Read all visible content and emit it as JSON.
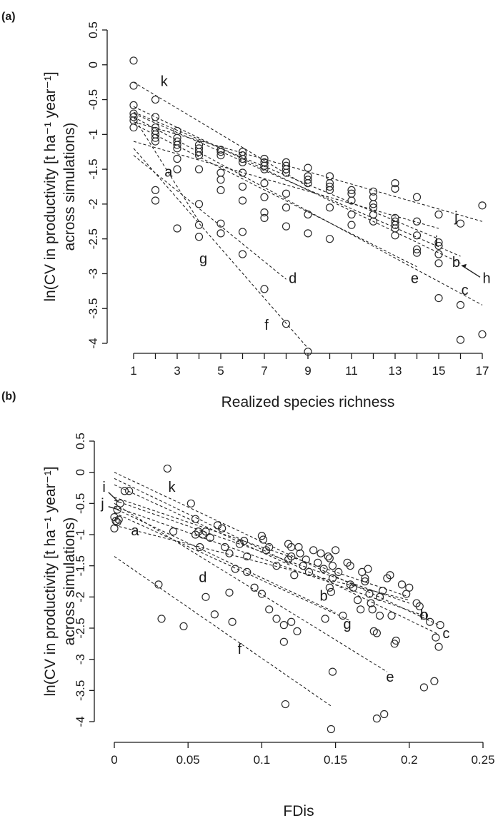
{
  "chart_data": [
    {
      "panel": "(a)",
      "type": "scatter",
      "xlabel": "Realized species richness",
      "ylabel_line1": "ln(CV in productivity [t ha⁻¹ year⁻¹]",
      "ylabel_line2": "across simulations)",
      "xlim": [
        1,
        17
      ],
      "ylim": [
        -4,
        0.5
      ],
      "xticks": [
        1,
        3,
        5,
        7,
        9,
        11,
        13,
        15,
        17
      ],
      "xminor": [
        2,
        4,
        6,
        8,
        10,
        12,
        14,
        16
      ],
      "yticks": [
        0.5,
        0,
        -0.5,
        -1,
        -1.5,
        -2,
        -2.5,
        -3,
        -3.5,
        -4
      ],
      "ytick_labels": [
        "0.5",
        "0",
        "-0.5",
        "-1",
        "-1.5",
        "-2",
        "-2.5",
        "-3",
        "-3.5",
        "-4"
      ],
      "xtick_labels": [
        "1",
        "3",
        "5",
        "7",
        "9",
        "11",
        "13",
        "15",
        "17"
      ],
      "points": [
        [
          1,
          0.06
        ],
        [
          1,
          -0.3
        ],
        [
          1,
          -0.58
        ],
        [
          1,
          -0.7
        ],
        [
          1,
          -0.75
        ],
        [
          1,
          -0.8
        ],
        [
          1,
          -0.9
        ],
        [
          2,
          -0.5
        ],
        [
          2,
          -0.75
        ],
        [
          2,
          -0.9
        ],
        [
          2,
          -0.95
        ],
        [
          2,
          -1.0
        ],
        [
          2,
          -1.05
        ],
        [
          2,
          -1.1
        ],
        [
          2,
          -1.8
        ],
        [
          2,
          -1.95
        ],
        [
          3,
          -0.95
        ],
        [
          3,
          -1.05
        ],
        [
          3,
          -1.1
        ],
        [
          3,
          -1.15
        ],
        [
          3,
          -1.2
        ],
        [
          3,
          -1.35
        ],
        [
          3,
          -1.5
        ],
        [
          3,
          -2.35
        ],
        [
          4,
          -1.15
        ],
        [
          4,
          -1.2
        ],
        [
          4,
          -1.25
        ],
        [
          4,
          -1.3
        ],
        [
          4,
          -1.5
        ],
        [
          4,
          -2.0
        ],
        [
          4,
          -2.3
        ],
        [
          4,
          -2.47
        ],
        [
          5,
          -1.22
        ],
        [
          5,
          -1.25
        ],
        [
          5,
          -1.3
        ],
        [
          5,
          -1.55
        ],
        [
          5,
          -1.65
        ],
        [
          5,
          -1.8
        ],
        [
          5,
          -2.28
        ],
        [
          5,
          -2.42
        ],
        [
          6,
          -1.25
        ],
        [
          6,
          -1.3
        ],
        [
          6,
          -1.35
        ],
        [
          6,
          -1.4
        ],
        [
          6,
          -1.55
        ],
        [
          6,
          -1.75
        ],
        [
          6,
          -1.95
        ],
        [
          6,
          -2.4
        ],
        [
          6,
          -2.72
        ],
        [
          7,
          -1.35
        ],
        [
          7,
          -1.4
        ],
        [
          7,
          -1.45
        ],
        [
          7,
          -1.5
        ],
        [
          7,
          -1.7
        ],
        [
          7,
          -1.9
        ],
        [
          7,
          -2.12
        ],
        [
          7,
          -2.2
        ],
        [
          7,
          -3.22
        ],
        [
          8,
          -1.4
        ],
        [
          8,
          -1.45
        ],
        [
          8,
          -1.5
        ],
        [
          8,
          -1.55
        ],
        [
          8,
          -1.85
        ],
        [
          8,
          -2.05
        ],
        [
          8,
          -2.32
        ],
        [
          8,
          -3.72
        ],
        [
          9,
          -1.48
        ],
        [
          9,
          -1.6
        ],
        [
          9,
          -1.65
        ],
        [
          9,
          -1.7
        ],
        [
          9,
          -2.15
        ],
        [
          9,
          -2.42
        ],
        [
          9,
          -4.12
        ],
        [
          10,
          -1.6
        ],
        [
          10,
          -1.7
        ],
        [
          10,
          -1.75
        ],
        [
          10,
          -1.8
        ],
        [
          10,
          -2.05
        ],
        [
          10,
          -2.5
        ],
        [
          11,
          -1.8
        ],
        [
          11,
          -1.85
        ],
        [
          11,
          -1.95
        ],
        [
          11,
          -2.15
        ],
        [
          11,
          -2.3
        ],
        [
          12,
          -1.82
        ],
        [
          12,
          -1.9
        ],
        [
          12,
          -2.0
        ],
        [
          12,
          -2.05
        ],
        [
          12,
          -2.15
        ],
        [
          12,
          -2.25
        ],
        [
          13,
          -1.7
        ],
        [
          13,
          -1.78
        ],
        [
          13,
          -2.2
        ],
        [
          13,
          -2.25
        ],
        [
          13,
          -2.3
        ],
        [
          13,
          -2.35
        ],
        [
          13,
          -2.45
        ],
        [
          14,
          -1.9
        ],
        [
          14,
          -2.25
        ],
        [
          14,
          -2.45
        ],
        [
          14,
          -2.65
        ],
        [
          14,
          -2.7
        ],
        [
          15,
          -2.15
        ],
        [
          15,
          -2.55
        ],
        [
          15,
          -2.6
        ],
        [
          15,
          -2.72
        ],
        [
          15,
          -2.85
        ],
        [
          15,
          -3.35
        ],
        [
          16,
          -2.28
        ],
        [
          16,
          -3.45
        ],
        [
          16,
          -3.95
        ],
        [
          17,
          -2.02
        ],
        [
          17,
          -3.87
        ]
      ],
      "fits": [
        {
          "label": "a",
          "x": [
            1,
            15
          ],
          "y": [
            -1.1,
            -2.35
          ]
        },
        {
          "label": "b",
          "x": [
            1,
            16
          ],
          "y": [
            -0.7,
            -2.75
          ]
        },
        {
          "label": "c",
          "x": [
            1,
            17
          ],
          "y": [
            -0.75,
            -3.45
          ]
        },
        {
          "label": "d",
          "x": [
            1,
            8
          ],
          "y": [
            -1.3,
            -3.08
          ]
        },
        {
          "label": "e",
          "x": [
            1,
            14
          ],
          "y": [
            -0.85,
            -2.9
          ]
        },
        {
          "label": "f",
          "x": [
            1,
            9
          ],
          "y": [
            -1.2,
            -4.07
          ]
        },
        {
          "label": "g",
          "x": [
            1,
            4
          ],
          "y": [
            -0.75,
            -2.25
          ]
        },
        {
          "label": "h",
          "x": [
            1,
            16
          ],
          "y": [
            -0.6,
            -2.85
          ]
        },
        {
          "label": "i",
          "x": [
            1,
            15
          ],
          "y": [
            -0.68,
            -2.5
          ]
        },
        {
          "label": "j",
          "x": [
            1,
            17
          ],
          "y": [
            -0.82,
            -2.25
          ]
        },
        {
          "label": "k",
          "x": [
            1,
            9
          ],
          "y": [
            -0.25,
            -1.75
          ]
        }
      ],
      "line_labels": [
        {
          "text": "k",
          "x": 2.4,
          "y": -0.25
        },
        {
          "text": "a",
          "x": 2.6,
          "y": -1.55
        },
        {
          "text": "g",
          "x": 4.2,
          "y": -2.8
        },
        {
          "text": "d",
          "x": 8.3,
          "y": -3.08
        },
        {
          "text": "f",
          "x": 7.1,
          "y": -3.75
        },
        {
          "text": "j",
          "x": 15.8,
          "y": -2.2
        },
        {
          "text": "i",
          "x": 14.9,
          "y": -2.55
        },
        {
          "text": "b",
          "x": 15.8,
          "y": -2.85
        },
        {
          "text": "e",
          "x": 13.9,
          "y": -3.08
        },
        {
          "text": "c",
          "x": 16.2,
          "y": -3.25
        },
        {
          "text": "h",
          "x": 17.2,
          "y": -3.08
        }
      ]
    },
    {
      "panel": "(b)",
      "type": "scatter",
      "xlabel": "FDis",
      "ylabel_line1": "ln(CV in productivity [t ha⁻¹ year⁻¹]",
      "ylabel_line2": "across simulations)",
      "xlim": [
        0,
        0.25
      ],
      "ylim": [
        -4,
        0.5
      ],
      "xticks": [
        0,
        0.05,
        0.1,
        0.15,
        0.2,
        0.25
      ],
      "xtick_labels": [
        "0",
        "0.05",
        "0.1",
        "0.15",
        "0.2",
        "0.25"
      ],
      "yticks": [
        0.5,
        0,
        -0.5,
        -1,
        -1.5,
        -2,
        -2.5,
        -3,
        -3.5,
        -4
      ],
      "ytick_labels": [
        "0.5",
        "0",
        "-0.5",
        "-1",
        "-1.5",
        "-2",
        "-2.5",
        "-3",
        "-3.5",
        "-4"
      ],
      "points": [
        [
          0.0,
          -0.72
        ],
        [
          0.001,
          -0.78
        ],
        [
          0.002,
          -0.8
        ],
        [
          0.003,
          -0.76
        ],
        [
          0.0,
          -0.9
        ],
        [
          0.002,
          -0.6
        ],
        [
          0.004,
          -0.5
        ],
        [
          0.007,
          -0.3
        ],
        [
          0.01,
          -0.3
        ],
        [
          0.036,
          0.06
        ],
        [
          0.03,
          -1.8
        ],
        [
          0.032,
          -2.35
        ],
        [
          0.047,
          -2.47
        ],
        [
          0.04,
          -0.95
        ],
        [
          0.052,
          -0.5
        ],
        [
          0.055,
          -0.75
        ],
        [
          0.057,
          -0.95
        ],
        [
          0.06,
          -1.0
        ],
        [
          0.062,
          -0.95
        ],
        [
          0.065,
          -1.05
        ],
        [
          0.055,
          -1.0
        ],
        [
          0.058,
          -1.2
        ],
        [
          0.062,
          -2.0
        ],
        [
          0.068,
          -2.28
        ],
        [
          0.07,
          -0.85
        ],
        [
          0.073,
          -0.9
        ],
        [
          0.075,
          -1.2
        ],
        [
          0.078,
          -1.3
        ],
        [
          0.078,
          -1.93
        ],
        [
          0.08,
          -2.4
        ],
        [
          0.082,
          -1.55
        ],
        [
          0.085,
          -1.15
        ],
        [
          0.088,
          -1.1
        ],
        [
          0.09,
          -1.35
        ],
        [
          0.09,
          -1.6
        ],
        [
          0.095,
          -1.85
        ],
        [
          0.1,
          -1.02
        ],
        [
          0.101,
          -1.08
        ],
        [
          0.103,
          -1.25
        ],
        [
          0.105,
          -1.2
        ],
        [
          0.1,
          -1.95
        ],
        [
          0.105,
          -2.2
        ],
        [
          0.11,
          -1.5
        ],
        [
          0.11,
          -2.35
        ],
        [
          0.115,
          -2.45
        ],
        [
          0.115,
          -2.72
        ],
        [
          0.116,
          -3.72
        ],
        [
          0.12,
          -1.35
        ],
        [
          0.118,
          -1.15
        ],
        [
          0.12,
          -1.2
        ],
        [
          0.122,
          -1.65
        ],
        [
          0.125,
          -1.2
        ],
        [
          0.126,
          -1.3
        ],
        [
          0.128,
          -1.5
        ],
        [
          0.118,
          -1.4
        ],
        [
          0.12,
          -2.4
        ],
        [
          0.124,
          -2.55
        ],
        [
          0.135,
          -1.25
        ],
        [
          0.13,
          -1.4
        ],
        [
          0.132,
          -1.6
        ],
        [
          0.14,
          -1.3
        ],
        [
          0.138,
          -1.45
        ],
        [
          0.142,
          -1.55
        ],
        [
          0.145,
          -1.35
        ],
        [
          0.146,
          -1.38
        ],
        [
          0.148,
          -1.5
        ],
        [
          0.143,
          -2.35
        ],
        [
          0.146,
          -1.85
        ],
        [
          0.147,
          -1.92
        ],
        [
          0.148,
          -1.7
        ],
        [
          0.15,
          -1.25
        ],
        [
          0.152,
          -1.6
        ],
        [
          0.155,
          -2.3
        ],
        [
          0.158,
          -1.45
        ],
        [
          0.16,
          -1.5
        ],
        [
          0.16,
          -1.8
        ],
        [
          0.162,
          -1.85
        ],
        [
          0.165,
          -2.05
        ],
        [
          0.167,
          -2.2
        ],
        [
          0.168,
          -1.6
        ],
        [
          0.17,
          -1.7
        ],
        [
          0.17,
          -1.75
        ],
        [
          0.172,
          -1.55
        ],
        [
          0.173,
          -1.95
        ],
        [
          0.174,
          -2.1
        ],
        [
          0.175,
          -2.2
        ],
        [
          0.176,
          -2.55
        ],
        [
          0.178,
          -2.58
        ],
        [
          0.18,
          -2.0
        ],
        [
          0.18,
          -2.3
        ],
        [
          0.182,
          -1.9
        ],
        [
          0.185,
          -1.7
        ],
        [
          0.187,
          -1.65
        ],
        [
          0.188,
          -2.3
        ],
        [
          0.19,
          -2.75
        ],
        [
          0.191,
          -2.7
        ],
        [
          0.195,
          -1.8
        ],
        [
          0.198,
          -1.95
        ],
        [
          0.2,
          -1.85
        ],
        [
          0.205,
          -2.1
        ],
        [
          0.207,
          -2.15
        ],
        [
          0.21,
          -2.3
        ],
        [
          0.214,
          -2.4
        ],
        [
          0.147,
          -4.12
        ],
        [
          0.148,
          -3.2
        ],
        [
          0.178,
          -3.95
        ],
        [
          0.183,
          -3.88
        ],
        [
          0.21,
          -3.45
        ],
        [
          0.217,
          -3.35
        ],
        [
          0.218,
          -2.65
        ],
        [
          0.22,
          -2.8
        ],
        [
          0.221,
          -2.45
        ]
      ],
      "fits": [
        {
          "label": "a",
          "x": [
            0,
            0.2
          ],
          "y": [
            -0.85,
            -2.05
          ]
        },
        {
          "label": "b",
          "x": [
            0,
            0.2
          ],
          "y": [
            -0.45,
            -2.1
          ]
        },
        {
          "label": "c",
          "x": [
            0,
            0.22
          ],
          "y": [
            -0.1,
            -2.6
          ]
        },
        {
          "label": "d",
          "x": [
            0.002,
            0.15
          ],
          "y": [
            -0.6,
            -2.25
          ]
        },
        {
          "label": "e",
          "x": [
            0,
            0.185
          ],
          "y": [
            -0.5,
            -3.2
          ]
        },
        {
          "label": "f",
          "x": [
            0,
            0.147
          ],
          "y": [
            -1.35,
            -3.75
          ]
        },
        {
          "label": "g",
          "x": [
            0,
            0.16
          ],
          "y": [
            -0.65,
            -2.38
          ]
        },
        {
          "label": "h",
          "x": [
            0,
            0.22
          ],
          "y": [
            0.0,
            -2.45
          ]
        },
        {
          "label": "i",
          "x": [
            0,
            0.2
          ],
          "y": [
            -0.4,
            -2.0
          ]
        },
        {
          "label": "j",
          "x": [
            0,
            0.21
          ],
          "y": [
            -0.55,
            -2.3
          ]
        },
        {
          "label": "k",
          "x": [
            0,
            0.12
          ],
          "y": [
            -0.2,
            -1.5
          ]
        }
      ],
      "line_labels": [
        {
          "text": "i",
          "x": -0.007,
          "y": -0.25
        },
        {
          "text": "j",
          "x": -0.008,
          "y": -0.52
        },
        {
          "text": "k",
          "x": 0.039,
          "y": -0.25
        },
        {
          "text": "a",
          "x": 0.014,
          "y": -0.95
        },
        {
          "text": "d",
          "x": 0.06,
          "y": -1.7
        },
        {
          "text": "b",
          "x": 0.142,
          "y": -2.0
        },
        {
          "text": "g",
          "x": 0.158,
          "y": -2.45
        },
        {
          "text": "h",
          "x": 0.21,
          "y": -2.3
        },
        {
          "text": "c",
          "x": 0.225,
          "y": -2.6
        },
        {
          "text": "f",
          "x": 0.085,
          "y": -2.85
        },
        {
          "text": "e",
          "x": 0.187,
          "y": -3.3
        }
      ]
    }
  ]
}
